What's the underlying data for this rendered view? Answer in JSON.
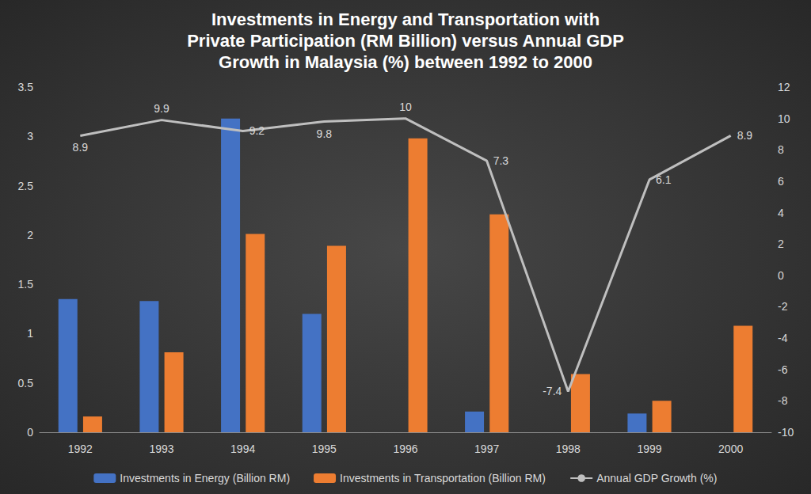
{
  "chart_data": {
    "type": "bar",
    "title": "Investments in Energy and Transportation with\nPrivate Participation (RM Billion) versus Annual GDP\nGrowth in Malaysia (%) between 1992 to 2000",
    "categories": [
      "1992",
      "1993",
      "1994",
      "1995",
      "1996",
      "1997",
      "1998",
      "1999",
      "2000"
    ],
    "series": [
      {
        "name": "Investments in Energy (Billion RM)",
        "type": "bar",
        "color": "#4472c4",
        "values": [
          1.35,
          1.33,
          3.18,
          1.2,
          0,
          0.21,
          0,
          0.19,
          0
        ]
      },
      {
        "name": "Investments in Transportation (Billion RM)",
        "type": "bar",
        "color": "#ed7d31",
        "values": [
          0.16,
          0.81,
          2.01,
          1.89,
          2.98,
          2.21,
          0.59,
          0.32,
          1.08
        ]
      },
      {
        "name": "Annual GDP Growth (%)",
        "type": "line",
        "color": "#bfbfbf",
        "axis": "y2",
        "data_labels": true,
        "values": [
          8.9,
          9.9,
          9.2,
          9.8,
          10,
          7.3,
          -7.4,
          6.1,
          8.9
        ]
      }
    ],
    "ylim": [
      0,
      3.5
    ],
    "yticks": [
      0,
      0.5,
      1,
      1.5,
      2,
      2.5,
      3,
      3.5
    ],
    "y2lim": [
      -10,
      12
    ],
    "y2ticks": [
      -10,
      -8,
      -6,
      -4,
      -2,
      0,
      2,
      4,
      6,
      8,
      10,
      12
    ],
    "grid": false,
    "legend": "bottom"
  }
}
